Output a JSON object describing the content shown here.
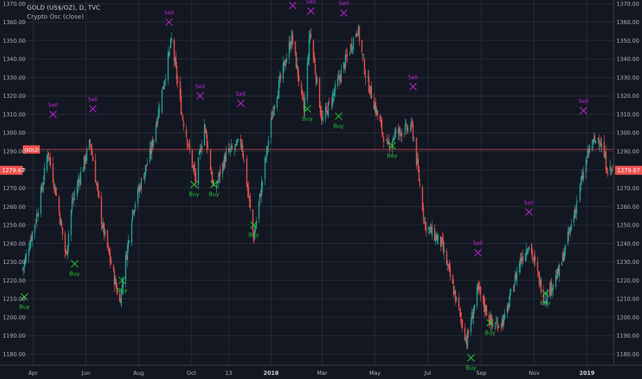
{
  "header": {
    "symbol_line": "GOLD (US$/OZ), D, TVC",
    "indicator_line": "Crypto Osc (close)"
  },
  "colors": {
    "background": "#131722",
    "grid": "#2a2e39",
    "axis_text": "#b2b5be",
    "up_candle": "#26a69a",
    "down_candle": "#ef5350",
    "gold_line": "#ef5350",
    "buy": "#26c832",
    "sell": "#c026d3",
    "price_badge": "#ef5350"
  },
  "chart_data": {
    "type": "candlestick",
    "symbol": "GOLD (US$/OZ)",
    "interval": "D",
    "source": "TVC",
    "indicator": "Crypto Osc (close)",
    "ylim": [
      1174,
      1372
    ],
    "y_ticks": [
      1180,
      1190,
      1200,
      1210,
      1220,
      1230,
      1240,
      1250,
      1260,
      1270,
      1280,
      1290,
      1300,
      1310,
      1320,
      1330,
      1340,
      1350,
      1360,
      1370
    ],
    "y_tick_labels": [
      "1180.00",
      "1190.00",
      "1200.00",
      "1210.00",
      "1220.00",
      "1230.00",
      "1240.00",
      "1250.00",
      "1260.00",
      "1270.00",
      "1280.00",
      "1290.00",
      "1300.00",
      "1310.00",
      "1320.00",
      "1330.00",
      "1340.00",
      "1350.00",
      "1360.00",
      "1370.00"
    ],
    "x_start": "2017-03-20",
    "x_end": "2019-02-01",
    "x_ticks": [
      {
        "date": "2017-04-01",
        "label": "Apr"
      },
      {
        "date": "2017-06-01",
        "label": "Jun"
      },
      {
        "date": "2017-08-01",
        "label": "Aug"
      },
      {
        "date": "2017-10-01",
        "label": "Oct"
      },
      {
        "date": "2017-11-13",
        "label": "13"
      },
      {
        "date": "2018-01-01",
        "label": "2018",
        "bold": true
      },
      {
        "date": "2018-03-01",
        "label": "Mar"
      },
      {
        "date": "2018-05-01",
        "label": "May"
      },
      {
        "date": "2018-07-01",
        "label": "Jul"
      },
      {
        "date": "2018-09-01",
        "label": "Sep"
      },
      {
        "date": "2018-11-01",
        "label": "Nov"
      },
      {
        "date": "2019-01-01",
        "label": "2019",
        "bold": true
      }
    ],
    "closes": [
      {
        "date": "2017-03-20",
        "value": 1226
      },
      {
        "date": "2017-04-05",
        "value": 1255
      },
      {
        "date": "2017-04-12",
        "value": 1272
      },
      {
        "date": "2017-04-18",
        "value": 1290
      },
      {
        "date": "2017-04-28",
        "value": 1266
      },
      {
        "date": "2017-05-09",
        "value": 1233
      },
      {
        "date": "2017-05-16",
        "value": 1262
      },
      {
        "date": "2017-06-06",
        "value": 1295
      },
      {
        "date": "2017-06-20",
        "value": 1250
      },
      {
        "date": "2017-07-10",
        "value": 1208
      },
      {
        "date": "2017-07-25",
        "value": 1258
      },
      {
        "date": "2017-08-15",
        "value": 1290
      },
      {
        "date": "2017-09-08",
        "value": 1350
      },
      {
        "date": "2017-09-20",
        "value": 1310
      },
      {
        "date": "2017-10-06",
        "value": 1274
      },
      {
        "date": "2017-10-16",
        "value": 1305
      },
      {
        "date": "2017-10-27",
        "value": 1268
      },
      {
        "date": "2017-11-10",
        "value": 1288
      },
      {
        "date": "2017-11-28",
        "value": 1295
      },
      {
        "date": "2017-12-12",
        "value": 1243
      },
      {
        "date": "2018-01-04",
        "value": 1315
      },
      {
        "date": "2018-01-25",
        "value": 1352
      },
      {
        "date": "2018-02-08",
        "value": 1312
      },
      {
        "date": "2018-02-15",
        "value": 1355
      },
      {
        "date": "2018-03-01",
        "value": 1306
      },
      {
        "date": "2018-03-15",
        "value": 1322
      },
      {
        "date": "2018-04-11",
        "value": 1357
      },
      {
        "date": "2018-04-20",
        "value": 1332
      },
      {
        "date": "2018-05-15",
        "value": 1292
      },
      {
        "date": "2018-05-25",
        "value": 1300
      },
      {
        "date": "2018-06-13",
        "value": 1303
      },
      {
        "date": "2018-06-28",
        "value": 1250
      },
      {
        "date": "2018-07-17",
        "value": 1240
      },
      {
        "date": "2018-08-15",
        "value": 1187
      },
      {
        "date": "2018-08-28",
        "value": 1215
      },
      {
        "date": "2018-09-14",
        "value": 1195
      },
      {
        "date": "2018-09-28",
        "value": 1199
      },
      {
        "date": "2018-10-15",
        "value": 1230
      },
      {
        "date": "2018-10-26",
        "value": 1240
      },
      {
        "date": "2018-11-13",
        "value": 1210
      },
      {
        "date": "2018-11-30",
        "value": 1225
      },
      {
        "date": "2018-12-14",
        "value": 1250
      },
      {
        "date": "2019-01-04",
        "value": 1292
      },
      {
        "date": "2019-01-15",
        "value": 1298
      },
      {
        "date": "2019-01-25",
        "value": 1280
      }
    ],
    "horizontal_lines": [
      {
        "label": "GOLD",
        "value": 1291
      }
    ],
    "last_price": {
      "label": "1279.67",
      "value": 1279.67
    },
    "signals": [
      {
        "type": "Buy",
        "date": "2017-03-22",
        "value": 1211
      },
      {
        "type": "Sell",
        "date": "2017-04-24",
        "value": 1310
      },
      {
        "type": "Buy",
        "date": "2017-05-19",
        "value": 1229
      },
      {
        "type": "Sell",
        "date": "2017-06-09",
        "value": 1313
      },
      {
        "type": "Buy",
        "date": "2017-07-13",
        "value": 1220
      },
      {
        "type": "Sell",
        "date": "2017-09-05",
        "value": 1360
      },
      {
        "type": "Buy",
        "date": "2017-10-04",
        "value": 1272
      },
      {
        "type": "Sell",
        "date": "2017-10-11",
        "value": 1320
      },
      {
        "type": "Buy",
        "date": "2017-10-27",
        "value": 1272
      },
      {
        "type": "Sell",
        "date": "2017-11-27",
        "value": 1316
      },
      {
        "type": "Buy",
        "date": "2017-12-12",
        "value": 1250
      },
      {
        "type": "Sell",
        "date": "2018-01-26",
        "value": 1369
      },
      {
        "type": "Buy",
        "date": "2018-02-12",
        "value": 1313
      },
      {
        "type": "Sell",
        "date": "2018-02-16",
        "value": 1366
      },
      {
        "type": "Buy",
        "date": "2018-03-20",
        "value": 1309
      },
      {
        "type": "Sell",
        "date": "2018-03-26",
        "value": 1365
      },
      {
        "type": "Buy",
        "date": "2018-05-21",
        "value": 1293
      },
      {
        "type": "Sell",
        "date": "2018-06-14",
        "value": 1325
      },
      {
        "type": "Buy",
        "date": "2018-08-20",
        "value": 1178
      },
      {
        "type": "Sell",
        "date": "2018-08-28",
        "value": 1235
      },
      {
        "type": "Buy",
        "date": "2018-09-11",
        "value": 1197
      },
      {
        "type": "Sell",
        "date": "2018-10-26",
        "value": 1257
      },
      {
        "type": "Buy",
        "date": "2018-11-14",
        "value": 1213
      },
      {
        "type": "Sell",
        "date": "2018-12-28",
        "value": 1312
      }
    ]
  }
}
